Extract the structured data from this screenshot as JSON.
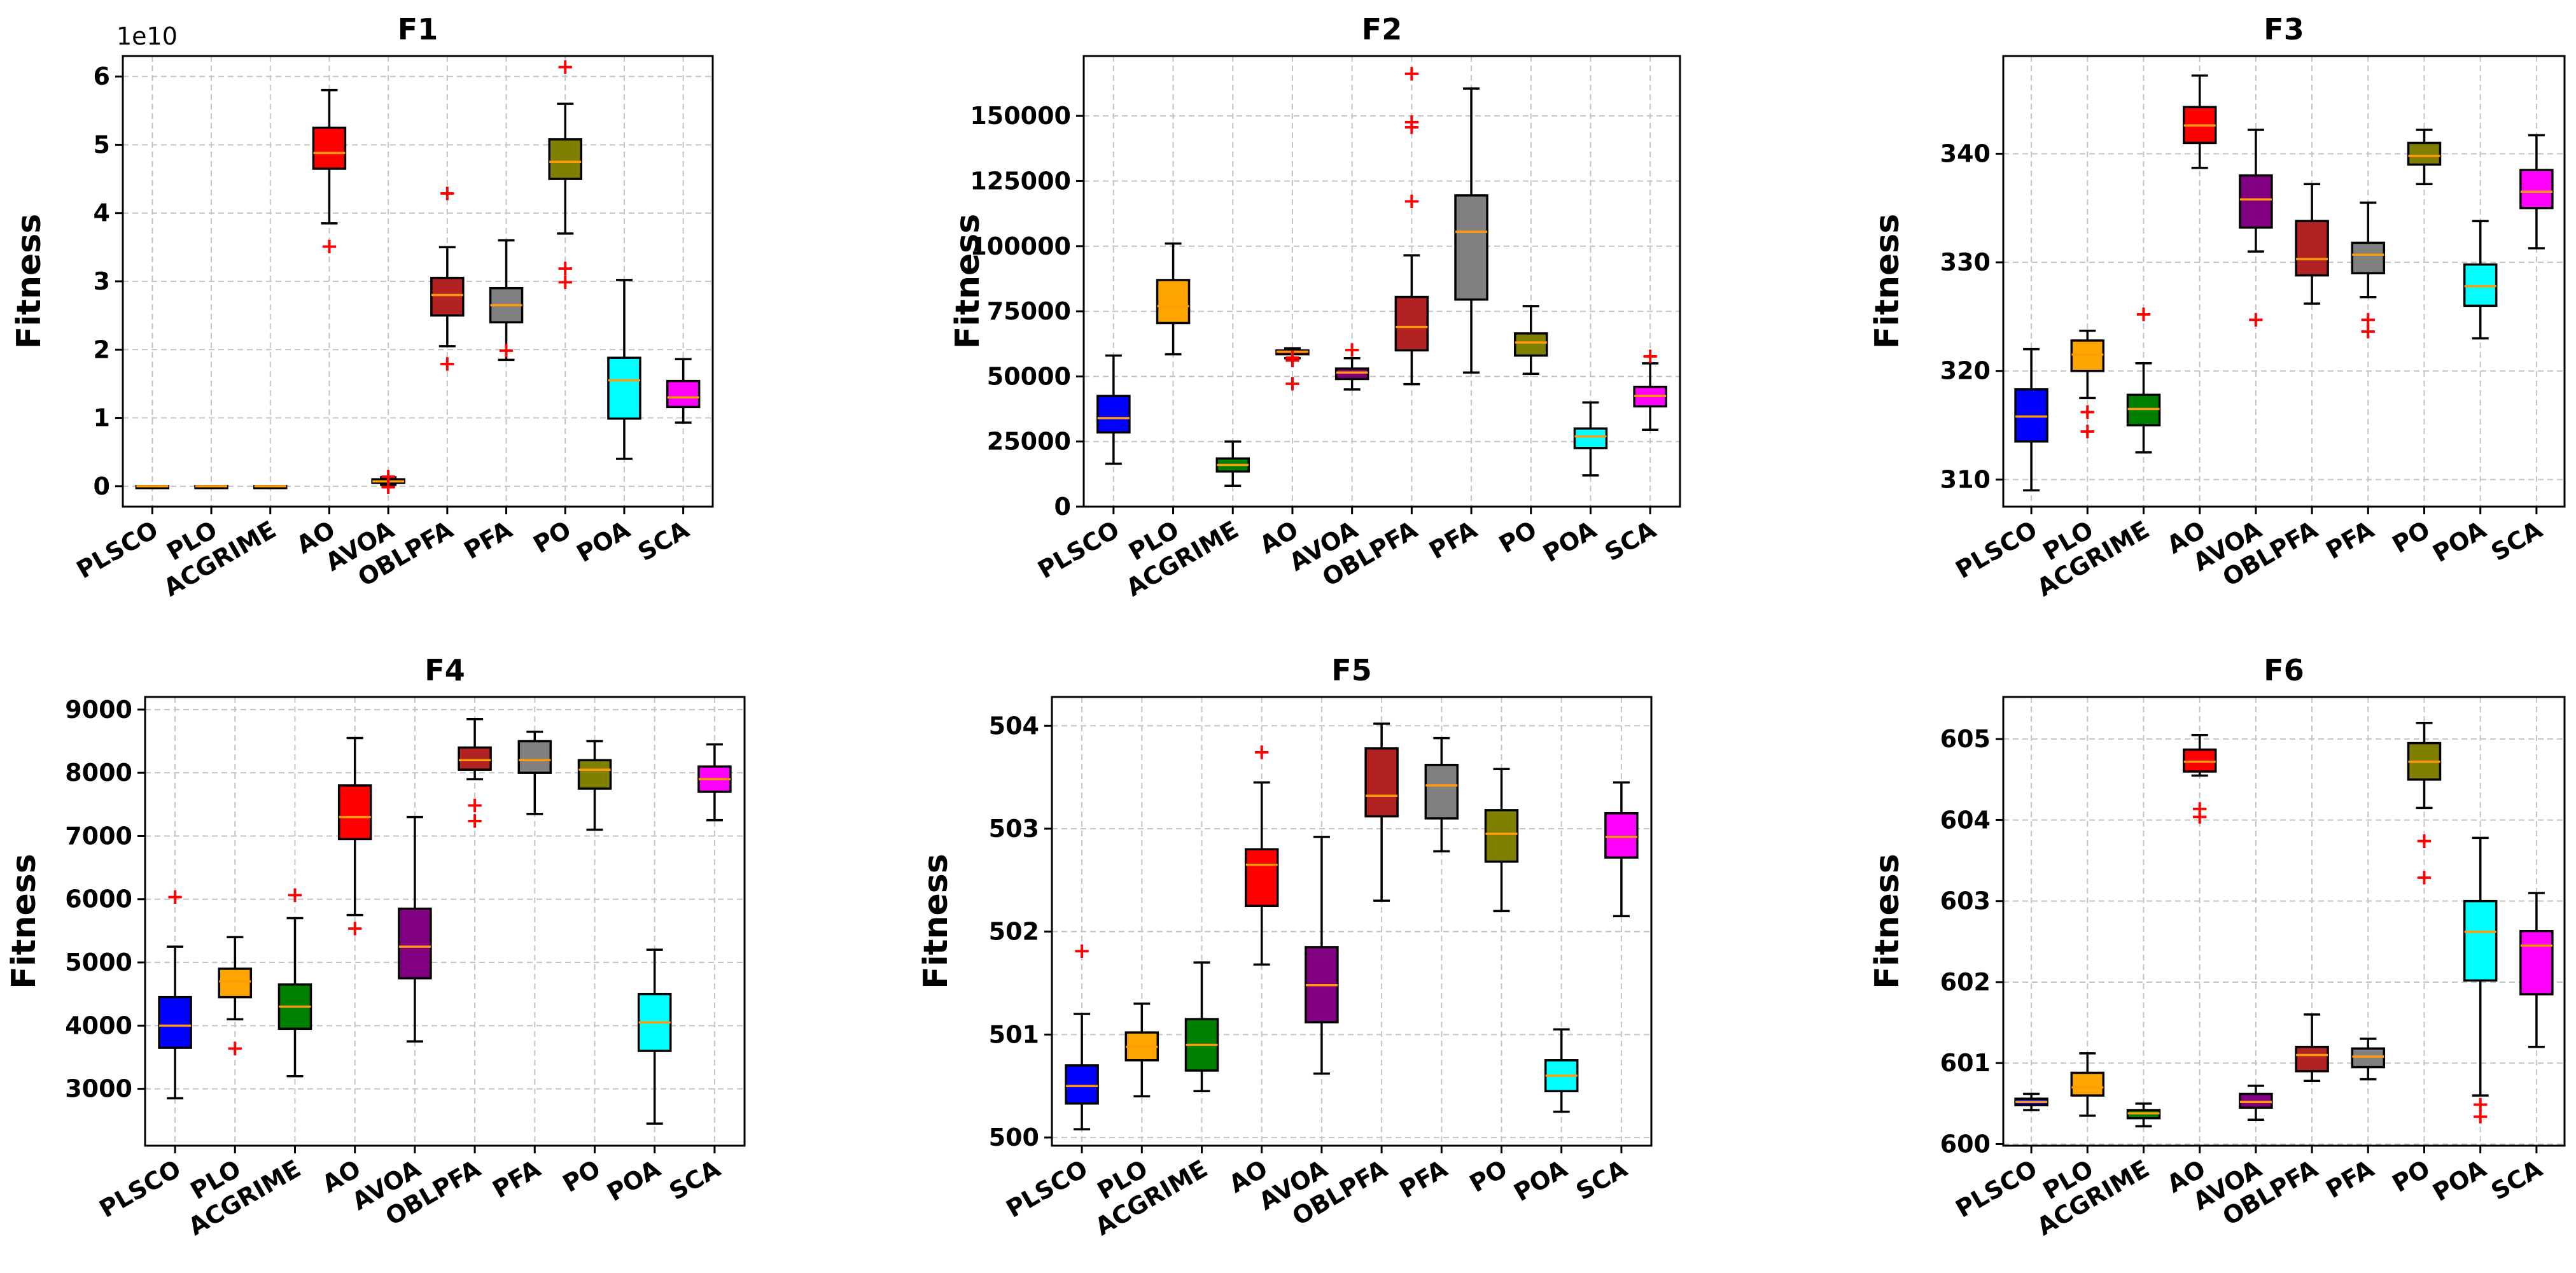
{
  "chart_data": [
    {
      "type": "box",
      "title": "F1",
      "ylabel": "Fitness",
      "ylim": [
        -0.3,
        6.3
      ],
      "yticks": [
        0,
        1,
        2,
        3,
        4,
        5,
        6
      ],
      "ytick_labels": [
        "0",
        "1",
        "2",
        "3",
        "4",
        "5",
        "6"
      ],
      "offset_label": "1e10",
      "categories": [
        "PLSCO",
        "PLO",
        "ACGRIME",
        "AO",
        "AVOA",
        "OBLPFA",
        "PFA",
        "PO",
        "POA",
        "SCA"
      ],
      "series": [
        {
          "name": "PLSCO",
          "color": "#0000ff",
          "whislo": 0.0,
          "q1": 0.0,
          "med": 0.0,
          "q3": 0.0,
          "whishi": 0.0,
          "fliers": []
        },
        {
          "name": "PLO",
          "color": "#ffa500",
          "whislo": 0.0,
          "q1": 0.0,
          "med": 0.0,
          "q3": 0.0,
          "whishi": 0.0,
          "fliers": []
        },
        {
          "name": "ACGRIME",
          "color": "#008000",
          "whislo": 0.0,
          "q1": 0.0,
          "med": 0.0,
          "q3": 0.0,
          "whishi": 0.0,
          "fliers": []
        },
        {
          "name": "AO",
          "color": "#ff0000",
          "whislo": 3.85,
          "q1": 4.65,
          "med": 4.88,
          "q3": 5.25,
          "whishi": 5.8,
          "fliers": [
            3.52
          ]
        },
        {
          "name": "AVOA",
          "color": "#800080",
          "whislo": 0.02,
          "q1": 0.05,
          "med": 0.07,
          "q3": 0.1,
          "whishi": 0.13,
          "fliers": [
            0.15,
            0.0
          ]
        },
        {
          "name": "OBLPFA",
          "color": "#b22222",
          "whislo": 2.05,
          "q1": 2.5,
          "med": 2.8,
          "q3": 3.05,
          "whishi": 3.5,
          "fliers": [
            4.3,
            1.8
          ]
        },
        {
          "name": "PFA",
          "color": "#808080",
          "whislo": 1.85,
          "q1": 2.4,
          "med": 2.65,
          "q3": 2.9,
          "whishi": 3.6,
          "fliers": [
            2.0
          ]
        },
        {
          "name": "PO",
          "color": "#808000",
          "whislo": 3.7,
          "q1": 4.5,
          "med": 4.75,
          "q3": 5.08,
          "whishi": 5.6,
          "fliers": [
            6.15,
            3.2,
            3.0
          ]
        },
        {
          "name": "POA",
          "color": "#00ffff",
          "whislo": 0.4,
          "q1": 0.99,
          "med": 1.55,
          "q3": 1.88,
          "whishi": 3.02,
          "fliers": []
        },
        {
          "name": "SCA",
          "color": "#ff00ff",
          "whislo": 0.93,
          "q1": 1.16,
          "med": 1.3,
          "q3": 1.54,
          "whishi": 1.86,
          "fliers": []
        }
      ]
    },
    {
      "type": "box",
      "title": "F2",
      "ylabel": "Fitness",
      "ylim": [
        0,
        173000
      ],
      "yticks": [
        0,
        25000,
        50000,
        75000,
        100000,
        125000,
        150000
      ],
      "ytick_labels": [
        "0",
        "25000",
        "50000",
        "75000",
        "100000",
        "125000",
        "150000"
      ],
      "categories": [
        "PLSCO",
        "PLO",
        "ACGRIME",
        "AO",
        "AVOA",
        "OBLPFA",
        "PFA",
        "PO",
        "POA",
        "SCA"
      ],
      "series": [
        {
          "name": "PLSCO",
          "color": "#0000ff",
          "whislo": 16500,
          "q1": 28500,
          "med": 34000,
          "q3": 42500,
          "whishi": 58000,
          "fliers": []
        },
        {
          "name": "PLO",
          "color": "#ffa500",
          "whislo": 58500,
          "q1": 70500,
          "med": 77000,
          "q3": 87000,
          "whishi": 101000,
          "fliers": []
        },
        {
          "name": "ACGRIME",
          "color": "#008000",
          "whislo": 8000,
          "q1": 13500,
          "med": 16000,
          "q3": 18500,
          "whishi": 25000,
          "fliers": []
        },
        {
          "name": "AO",
          "color": "#ff0000",
          "whislo": 57000,
          "q1": 58500,
          "med": 59500,
          "q3": 60000,
          "whishi": 60800,
          "fliers": [
            47500,
            56500,
            57500
          ]
        },
        {
          "name": "AVOA",
          "color": "#800080",
          "whislo": 45000,
          "q1": 49000,
          "med": 51500,
          "q3": 53000,
          "whishi": 57000,
          "fliers": [
            60500
          ]
        },
        {
          "name": "OBLPFA",
          "color": "#b22222",
          "whislo": 47000,
          "q1": 60000,
          "med": 69000,
          "q3": 80500,
          "whishi": 96500,
          "fliers": [
            117500,
            146000,
            148000,
            166500
          ]
        },
        {
          "name": "PFA",
          "color": "#808080",
          "whislo": 51500,
          "q1": 79500,
          "med": 105500,
          "q3": 119500,
          "whishi": 160500,
          "fliers": []
        },
        {
          "name": "PO",
          "color": "#808000",
          "whislo": 51000,
          "q1": 58000,
          "med": 63000,
          "q3": 66500,
          "whishi": 77000,
          "fliers": []
        },
        {
          "name": "POA",
          "color": "#00ffff",
          "whislo": 12000,
          "q1": 22500,
          "med": 27000,
          "q3": 30000,
          "whishi": 40000,
          "fliers": []
        },
        {
          "name": "SCA",
          "color": "#ff00ff",
          "whislo": 29500,
          "q1": 38500,
          "med": 42500,
          "q3": 46000,
          "whishi": 55000,
          "fliers": [
            58000
          ]
        }
      ]
    },
    {
      "type": "box",
      "title": "F3",
      "ylabel": "Fitness",
      "ylim": [
        307.5,
        349
      ],
      "yticks": [
        310,
        320,
        330,
        340
      ],
      "ytick_labels": [
        "310",
        "320",
        "330",
        "340"
      ],
      "categories": [
        "PLSCO",
        "PLO",
        "ACGRIME",
        "AO",
        "AVOA",
        "OBLPFA",
        "PFA",
        "PO",
        "POA",
        "SCA"
      ],
      "series": [
        {
          "name": "PLSCO",
          "color": "#0000ff",
          "whislo": 309,
          "q1": 313.5,
          "med": 315.8,
          "q3": 318.3,
          "whishi": 322,
          "fliers": []
        },
        {
          "name": "PLO",
          "color": "#ffa500",
          "whislo": 317.5,
          "q1": 320,
          "med": 321.5,
          "q3": 322.8,
          "whishi": 323.7,
          "fliers": [
            316.3,
            314.5
          ]
        },
        {
          "name": "ACGRIME",
          "color": "#008000",
          "whislo": 312.5,
          "q1": 315,
          "med": 316.5,
          "q3": 317.8,
          "whishi": 320.7,
          "fliers": [
            325.3
          ]
        },
        {
          "name": "AO",
          "color": "#ff0000",
          "whislo": 338.7,
          "q1": 341,
          "med": 342.6,
          "q3": 344.3,
          "whishi": 347.2,
          "fliers": []
        },
        {
          "name": "AVOA",
          "color": "#800080",
          "whislo": 331,
          "q1": 333.2,
          "med": 335.8,
          "q3": 338,
          "whishi": 342.2,
          "fliers": [
            324.8
          ]
        },
        {
          "name": "OBLPFA",
          "color": "#b22222",
          "whislo": 326.2,
          "q1": 328.8,
          "med": 330.3,
          "q3": 333.8,
          "whishi": 337.2,
          "fliers": []
        },
        {
          "name": "PFA",
          "color": "#808080",
          "whislo": 326.8,
          "q1": 329,
          "med": 330.7,
          "q3": 331.8,
          "whishi": 335.5,
          "fliers": [
            324.8,
            323.7
          ]
        },
        {
          "name": "PO",
          "color": "#808000",
          "whislo": 337.2,
          "q1": 339,
          "med": 339.8,
          "q3": 341,
          "whishi": 342.2,
          "fliers": []
        },
        {
          "name": "POA",
          "color": "#00ffff",
          "whislo": 323,
          "q1": 326,
          "med": 327.8,
          "q3": 329.8,
          "whishi": 333.8,
          "fliers": []
        },
        {
          "name": "SCA",
          "color": "#ff00ff",
          "whislo": 331.3,
          "q1": 335,
          "med": 336.5,
          "q3": 338.5,
          "whishi": 341.7,
          "fliers": []
        }
      ]
    },
    {
      "type": "box",
      "title": "F4",
      "ylabel": "Fitness",
      "ylim": [
        2100,
        9200
      ],
      "yticks": [
        3000,
        4000,
        5000,
        6000,
        7000,
        8000,
        9000
      ],
      "ytick_labels": [
        "3000",
        "4000",
        "5000",
        "6000",
        "7000",
        "8000",
        "9000"
      ],
      "categories": [
        "PLSCO",
        "PLO",
        "ACGRIME",
        "AO",
        "AVOA",
        "OBLPFA",
        "PFA",
        "PO",
        "POA",
        "SCA"
      ],
      "series": [
        {
          "name": "PLSCO",
          "color": "#0000ff",
          "whislo": 2850,
          "q1": 3650,
          "med": 4000,
          "q3": 4450,
          "whishi": 5250,
          "fliers": [
            6050
          ]
        },
        {
          "name": "PLO",
          "color": "#ffa500",
          "whislo": 4100,
          "q1": 4450,
          "med": 4700,
          "q3": 4900,
          "whishi": 5400,
          "fliers": [
            3650
          ]
        },
        {
          "name": "ACGRIME",
          "color": "#008000",
          "whislo": 3200,
          "q1": 3950,
          "med": 4300,
          "q3": 4650,
          "whishi": 5700,
          "fliers": [
            6080
          ]
        },
        {
          "name": "AO",
          "color": "#ff0000",
          "whislo": 5750,
          "q1": 6950,
          "med": 7300,
          "q3": 7800,
          "whishi": 8550,
          "fliers": [
            5550
          ]
        },
        {
          "name": "AVOA",
          "color": "#800080",
          "whislo": 3750,
          "q1": 4750,
          "med": 5250,
          "q3": 5850,
          "whishi": 7300,
          "fliers": []
        },
        {
          "name": "OBLPFA",
          "color": "#b22222",
          "whislo": 7900,
          "q1": 8050,
          "med": 8200,
          "q3": 8400,
          "whishi": 8850,
          "fliers": [
            7500,
            7250
          ]
        },
        {
          "name": "PFA",
          "color": "#808080",
          "whislo": 7350,
          "q1": 8000,
          "med": 8200,
          "q3": 8500,
          "whishi": 8650,
          "fliers": []
        },
        {
          "name": "PO",
          "color": "#808000",
          "whislo": 7100,
          "q1": 7750,
          "med": 8050,
          "q3": 8200,
          "whishi": 8500,
          "fliers": []
        },
        {
          "name": "POA",
          "color": "#00ffff",
          "whislo": 2450,
          "q1": 3600,
          "med": 4050,
          "q3": 4500,
          "whishi": 5200,
          "fliers": []
        },
        {
          "name": "SCA",
          "color": "#ff00ff",
          "whislo": 7250,
          "q1": 7700,
          "med": 7900,
          "q3": 8100,
          "whishi": 8450,
          "fliers": []
        }
      ]
    },
    {
      "type": "box",
      "title": "F5",
      "ylabel": "Fitness",
      "ylim": [
        499.92,
        504.28
      ],
      "yticks": [
        500,
        501,
        502,
        503,
        504
      ],
      "ytick_labels": [
        "500",
        "501",
        "502",
        "503",
        "504"
      ],
      "categories": [
        "PLSCO",
        "PLO",
        "ACGRIME",
        "AO",
        "AVOA",
        "OBLPFA",
        "PFA",
        "PO",
        "POA",
        "SCA"
      ],
      "series": [
        {
          "name": "PLSCO",
          "color": "#0000ff",
          "whislo": 500.08,
          "q1": 500.33,
          "med": 500.5,
          "q3": 500.7,
          "whishi": 501.2,
          "fliers": [
            501.82
          ]
        },
        {
          "name": "PLO",
          "color": "#ffa500",
          "whislo": 500.4,
          "q1": 500.75,
          "med": 500.88,
          "q3": 501.02,
          "whishi": 501.3,
          "fliers": []
        },
        {
          "name": "ACGRIME",
          "color": "#008000",
          "whislo": 500.45,
          "q1": 500.65,
          "med": 500.9,
          "q3": 501.15,
          "whishi": 501.7,
          "fliers": []
        },
        {
          "name": "AO",
          "color": "#ff0000",
          "whislo": 501.68,
          "q1": 502.25,
          "med": 502.65,
          "q3": 502.8,
          "whishi": 503.45,
          "fliers": [
            503.75
          ]
        },
        {
          "name": "AVOA",
          "color": "#800080",
          "whislo": 500.62,
          "q1": 501.12,
          "med": 501.48,
          "q3": 501.85,
          "whishi": 502.92,
          "fliers": []
        },
        {
          "name": "OBLPFA",
          "color": "#b22222",
          "whislo": 502.3,
          "q1": 503.12,
          "med": 503.32,
          "q3": 503.78,
          "whishi": 504.02,
          "fliers": []
        },
        {
          "name": "PFA",
          "color": "#808080",
          "whislo": 502.78,
          "q1": 503.1,
          "med": 503.42,
          "q3": 503.62,
          "whishi": 503.88,
          "fliers": []
        },
        {
          "name": "PO",
          "color": "#808000",
          "whislo": 502.2,
          "q1": 502.68,
          "med": 502.95,
          "q3": 503.18,
          "whishi": 503.58,
          "fliers": []
        },
        {
          "name": "POA",
          "color": "#00ffff",
          "whislo": 500.25,
          "q1": 500.45,
          "med": 500.6,
          "q3": 500.75,
          "whishi": 501.05,
          "fliers": []
        },
        {
          "name": "SCA",
          "color": "#ff00ff",
          "whislo": 502.15,
          "q1": 502.72,
          "med": 502.92,
          "q3": 503.15,
          "whishi": 503.45,
          "fliers": []
        }
      ]
    },
    {
      "type": "box",
      "title": "F6",
      "ylabel": "Fitness",
      "ylim": [
        599.98,
        605.52
      ],
      "yticks": [
        600,
        601,
        602,
        603,
        604,
        605
      ],
      "ytick_labels": [
        "600",
        "601",
        "602",
        "603",
        "604",
        "605"
      ],
      "categories": [
        "PLSCO",
        "PLO",
        "ACGRIME",
        "AO",
        "AVOA",
        "OBLPFA",
        "PFA",
        "PO",
        "POA",
        "SCA"
      ],
      "series": [
        {
          "name": "PLSCO",
          "color": "#0000ff",
          "whislo": 600.42,
          "q1": 600.48,
          "med": 600.52,
          "q3": 600.56,
          "whishi": 600.62,
          "fliers": []
        },
        {
          "name": "PLO",
          "color": "#ffa500",
          "whislo": 600.35,
          "q1": 600.6,
          "med": 600.7,
          "q3": 600.88,
          "whishi": 601.12,
          "fliers": []
        },
        {
          "name": "ACGRIME",
          "color": "#008000",
          "whislo": 600.22,
          "q1": 600.32,
          "med": 600.38,
          "q3": 600.42,
          "whishi": 600.5,
          "fliers": []
        },
        {
          "name": "AO",
          "color": "#ff0000",
          "whislo": 604.55,
          "q1": 604.6,
          "med": 604.72,
          "q3": 604.87,
          "whishi": 605.05,
          "fliers": [
            604.15,
            604.05
          ]
        },
        {
          "name": "AVOA",
          "color": "#800080",
          "whislo": 600.3,
          "q1": 600.45,
          "med": 600.52,
          "q3": 600.62,
          "whishi": 600.72,
          "fliers": []
        },
        {
          "name": "OBLPFA",
          "color": "#b22222",
          "whislo": 600.78,
          "q1": 600.9,
          "med": 601.1,
          "q3": 601.2,
          "whishi": 601.6,
          "fliers": []
        },
        {
          "name": "PFA",
          "color": "#808080",
          "whislo": 600.8,
          "q1": 600.95,
          "med": 601.08,
          "q3": 601.18,
          "whishi": 601.3,
          "fliers": []
        },
        {
          "name": "PO",
          "color": "#808000",
          "whislo": 604.15,
          "q1": 604.5,
          "med": 604.72,
          "q3": 604.95,
          "whishi": 605.2,
          "fliers": [
            603.75,
            603.3
          ]
        },
        {
          "name": "POA",
          "color": "#00ffff",
          "whislo": 600.6,
          "q1": 602.02,
          "med": 602.62,
          "q3": 603,
          "whishi": 603.78,
          "fliers": [
            600.5,
            600.35
          ]
        },
        {
          "name": "SCA",
          "color": "#ff00ff",
          "whislo": 601.2,
          "q1": 601.85,
          "med": 602.45,
          "q3": 602.63,
          "whishi": 603.1,
          "fliers": []
        }
      ]
    }
  ]
}
